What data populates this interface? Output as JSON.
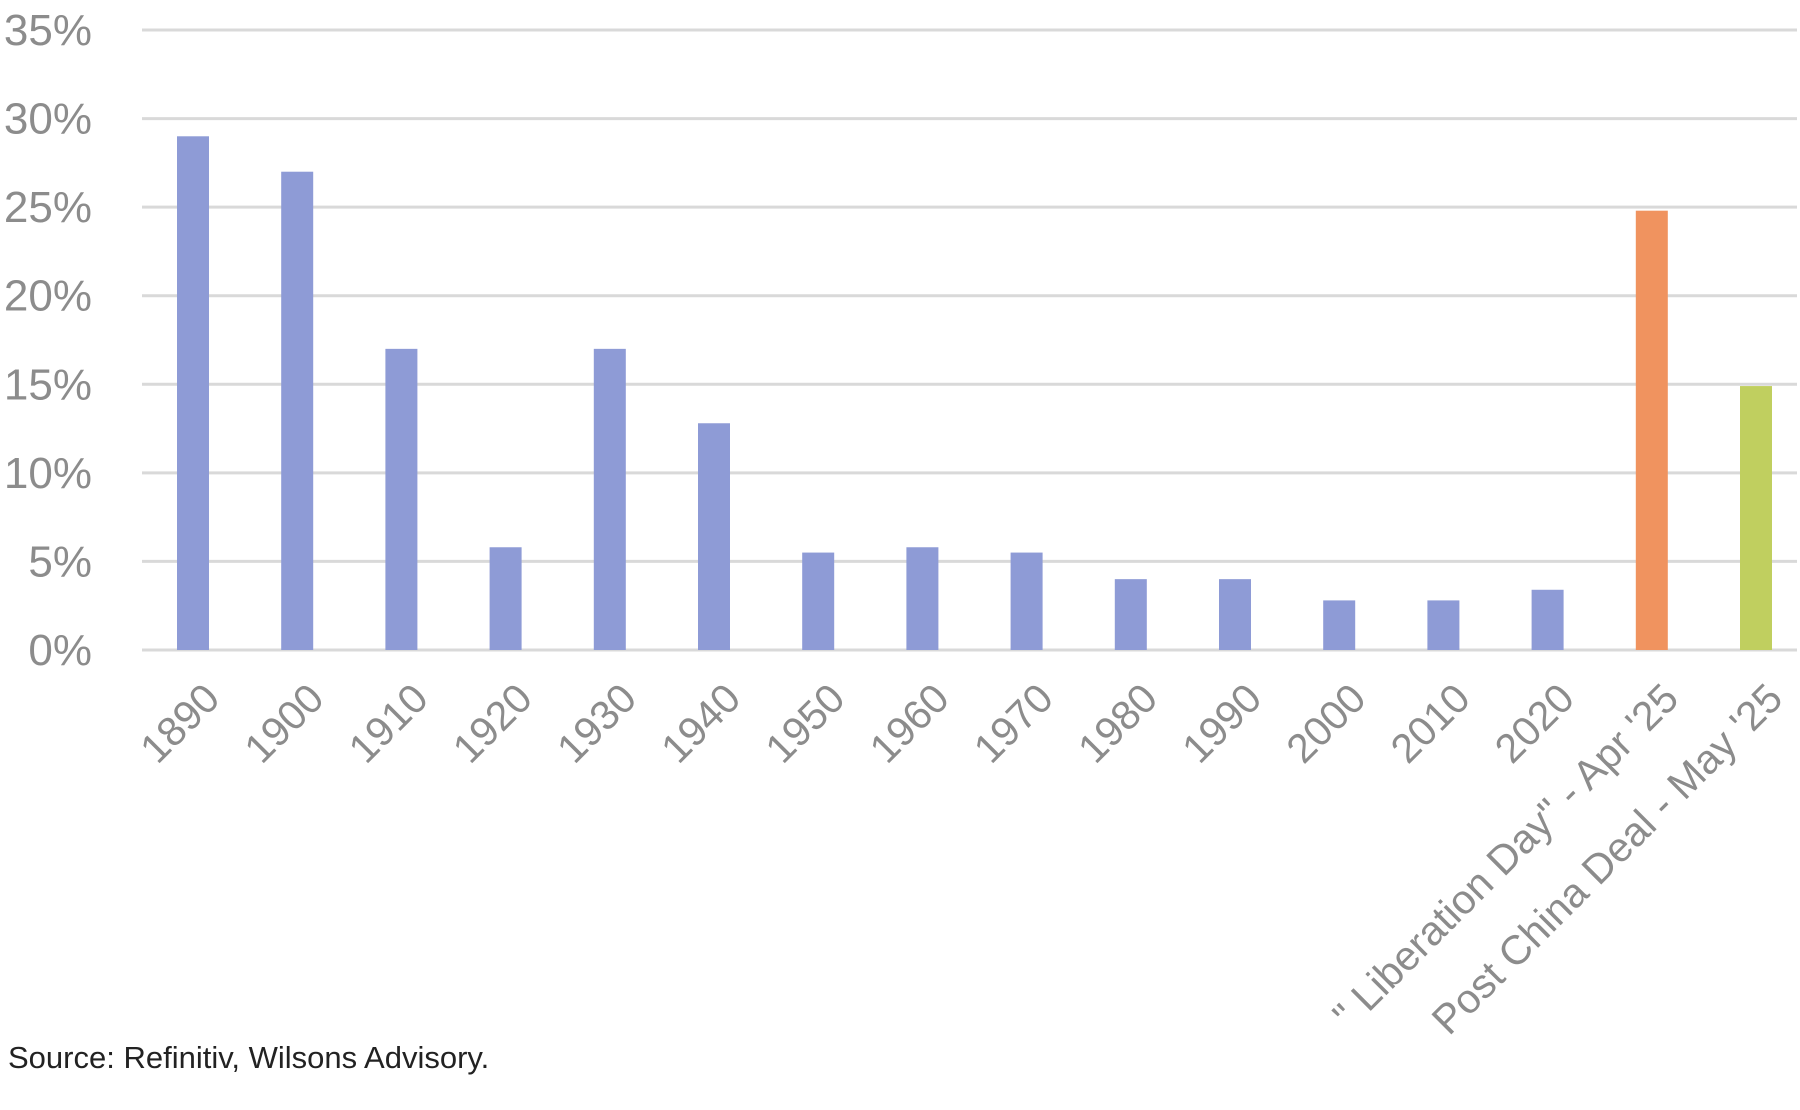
{
  "chart_data": {
    "type": "bar",
    "categories": [
      "1890",
      "1900",
      "1910",
      "1920",
      "1930",
      "1940",
      "1950",
      "1960",
      "1970",
      "1980",
      "1990",
      "2000",
      "2010",
      "2020",
      "\" Liberation Day\" - Apr '25",
      "Post China Deal - May '25"
    ],
    "values": [
      29,
      27,
      17,
      5.8,
      17,
      12.8,
      5.5,
      5.8,
      5.5,
      4.0,
      4.0,
      2.8,
      2.8,
      3.4,
      24.8,
      14.9
    ],
    "bar_colors": [
      "#8e9bd6",
      "#8e9bd6",
      "#8e9bd6",
      "#8e9bd6",
      "#8e9bd6",
      "#8e9bd6",
      "#8e9bd6",
      "#8e9bd6",
      "#8e9bd6",
      "#8e9bd6",
      "#8e9bd6",
      "#8e9bd6",
      "#8e9bd6",
      "#8e9bd6",
      "#f0935f",
      "#c0cf5f"
    ],
    "ylim": [
      0,
      35
    ],
    "yticks": [
      "0%",
      "5%",
      "10%",
      "15%",
      "20%",
      "25%",
      "30%",
      "35%"
    ],
    "ytick_values": [
      0,
      5,
      10,
      15,
      20,
      25,
      30,
      35
    ],
    "grid": true,
    "grid_color": "#d9d9d9",
    "title": "",
    "xlabel": "",
    "ylabel": ""
  },
  "source_note": "Source: Refinitiv, Wilsons Advisory."
}
